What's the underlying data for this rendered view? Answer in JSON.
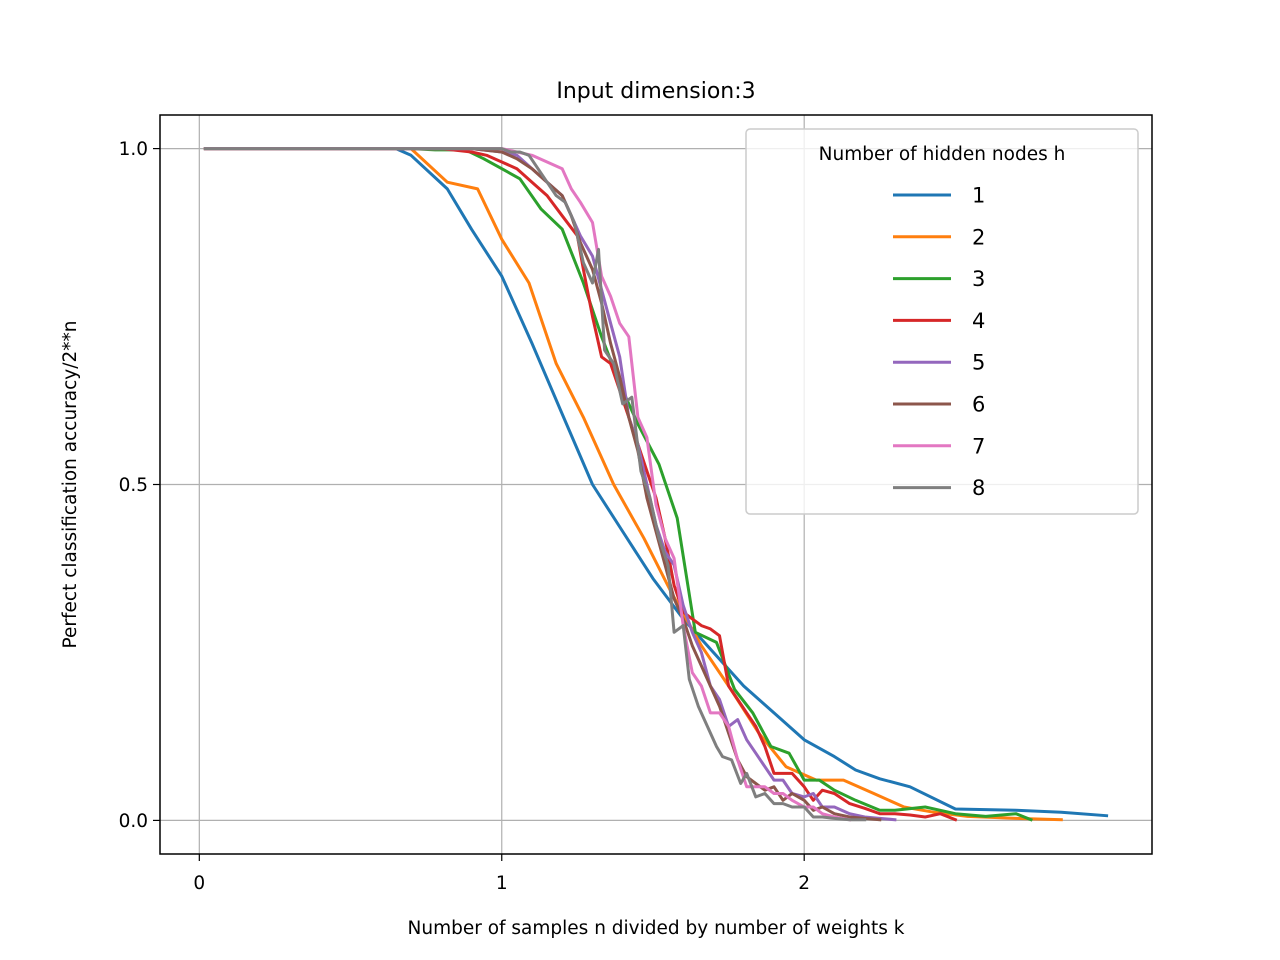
{
  "chart_data": {
    "type": "line",
    "title": "Input dimension:3",
    "xlabel": "Number of samples n divided by number of weights k",
    "ylabel": "Perfect classification accuracy/2**n",
    "xlim": [
      -0.13,
      3.15
    ],
    "ylim": [
      -0.05,
      1.05
    ],
    "xticks": [
      0,
      1,
      2
    ],
    "xtick_labels": [
      "0",
      "1",
      "2"
    ],
    "yticks": [
      0.0,
      0.5,
      1.0
    ],
    "ytick_labels": [
      "0.0",
      "0.5",
      "1.0"
    ],
    "grid": true,
    "legend": {
      "title": "Number of hidden nodes h",
      "placement": "upper right"
    },
    "series": [
      {
        "name": "1",
        "color": "#1f77b4",
        "x": [
          0.02,
          0.55,
          0.65,
          0.7,
          0.82,
          0.9,
          1.0,
          1.1,
          1.2,
          1.3,
          1.4,
          1.5,
          1.6,
          1.7,
          1.8,
          1.9,
          2.0,
          2.1,
          2.17,
          2.25,
          2.35,
          2.5,
          2.7,
          2.85,
          3.0
        ],
        "y": [
          1.0,
          1.0,
          1.0,
          0.99,
          0.94,
          0.88,
          0.81,
          0.71,
          0.605,
          0.5,
          0.43,
          0.36,
          0.3,
          0.25,
          0.2,
          0.16,
          0.12,
          0.095,
          0.075,
          0.062,
          0.05,
          0.017,
          0.015,
          0.012,
          0.007
        ]
      },
      {
        "name": "2",
        "color": "#ff7f0e",
        "x": [
          0.02,
          0.7,
          0.82,
          0.92,
          1.0,
          1.09,
          1.18,
          1.27,
          1.37,
          1.47,
          1.56,
          1.66,
          1.75,
          1.85,
          1.94,
          2.04,
          2.13,
          2.23,
          2.33,
          2.43,
          2.54,
          2.7,
          2.85
        ],
        "y": [
          1.0,
          1.0,
          0.95,
          0.94,
          0.865,
          0.8,
          0.68,
          0.6,
          0.5,
          0.42,
          0.34,
          0.26,
          0.2,
          0.13,
          0.08,
          0.06,
          0.06,
          0.04,
          0.02,
          0.012,
          0.006,
          0.003,
          0.001
        ]
      },
      {
        "name": "3",
        "color": "#2ca02c",
        "x": [
          0.02,
          0.7,
          0.78,
          0.88,
          0.94,
          1.0,
          1.06,
          1.13,
          1.2,
          1.27,
          1.33,
          1.39,
          1.45,
          1.52,
          1.58,
          1.64,
          1.71,
          1.77,
          1.83,
          1.89,
          1.95,
          2.0,
          2.05,
          2.1,
          2.17,
          2.25,
          2.3,
          2.4,
          2.5,
          2.6,
          2.7,
          2.75
        ],
        "y": [
          1.0,
          1.0,
          0.998,
          0.998,
          0.985,
          0.97,
          0.955,
          0.91,
          0.88,
          0.8,
          0.72,
          0.65,
          0.59,
          0.53,
          0.45,
          0.28,
          0.265,
          0.195,
          0.16,
          0.11,
          0.1,
          0.06,
          0.06,
          0.045,
          0.03,
          0.015,
          0.015,
          0.02,
          0.01,
          0.006,
          0.01,
          0.001
        ]
      },
      {
        "name": "4",
        "color": "#d62728",
        "x": [
          0.02,
          0.8,
          0.9,
          0.95,
          1.0,
          1.05,
          1.1,
          1.15,
          1.2,
          1.25,
          1.27,
          1.3,
          1.33,
          1.36,
          1.39,
          1.42,
          1.45,
          1.48,
          1.51,
          1.54,
          1.57,
          1.6,
          1.63,
          1.66,
          1.69,
          1.72,
          1.75,
          1.78,
          1.81,
          1.84,
          1.87,
          1.9,
          1.93,
          1.96,
          2.0,
          2.03,
          2.06,
          2.1,
          2.15,
          2.2,
          2.25,
          2.3,
          2.35,
          2.4,
          2.45,
          2.5
        ],
        "y": [
          1.0,
          1.0,
          0.995,
          0.99,
          0.98,
          0.97,
          0.95,
          0.93,
          0.9,
          0.87,
          0.82,
          0.75,
          0.69,
          0.68,
          0.64,
          0.6,
          0.56,
          0.52,
          0.48,
          0.42,
          0.35,
          0.31,
          0.3,
          0.29,
          0.285,
          0.275,
          0.2,
          0.18,
          0.16,
          0.14,
          0.11,
          0.07,
          0.07,
          0.07,
          0.05,
          0.03,
          0.045,
          0.04,
          0.025,
          0.018,
          0.01,
          0.01,
          0.008,
          0.005,
          0.01,
          0.001
        ]
      },
      {
        "name": "5",
        "color": "#9467bd",
        "x": [
          0.02,
          0.8,
          0.9,
          1.0,
          1.05,
          1.1,
          1.15,
          1.2,
          1.23,
          1.26,
          1.3,
          1.33,
          1.36,
          1.39,
          1.42,
          1.45,
          1.48,
          1.51,
          1.54,
          1.57,
          1.6,
          1.63,
          1.66,
          1.69,
          1.72,
          1.75,
          1.78,
          1.81,
          1.84,
          1.87,
          1.9,
          1.93,
          1.96,
          2.0,
          2.03,
          2.06,
          2.1,
          2.15,
          2.2,
          2.25,
          2.3
        ],
        "y": [
          1.0,
          1.0,
          1.0,
          0.995,
          0.99,
          0.97,
          0.95,
          0.93,
          0.9,
          0.87,
          0.84,
          0.79,
          0.74,
          0.69,
          0.6,
          0.56,
          0.5,
          0.44,
          0.4,
          0.38,
          0.32,
          0.28,
          0.25,
          0.2,
          0.18,
          0.14,
          0.15,
          0.12,
          0.1,
          0.08,
          0.06,
          0.06,
          0.04,
          0.035,
          0.04,
          0.02,
          0.02,
          0.01,
          0.005,
          0.003,
          0.001
        ]
      },
      {
        "name": "6",
        "color": "#8c564b",
        "x": [
          0.02,
          0.8,
          0.9,
          1.0,
          1.05,
          1.1,
          1.15,
          1.2,
          1.23,
          1.26,
          1.3,
          1.33,
          1.36,
          1.39,
          1.42,
          1.45,
          1.48,
          1.51,
          1.54,
          1.57,
          1.6,
          1.63,
          1.66,
          1.69,
          1.72,
          1.75,
          1.78,
          1.81,
          1.84,
          1.87,
          1.9,
          1.93,
          1.96,
          2.0,
          2.03,
          2.06,
          2.1,
          2.15,
          2.2,
          2.25
        ],
        "y": [
          1.0,
          1.0,
          1.0,
          0.995,
          0.985,
          0.97,
          0.95,
          0.93,
          0.9,
          0.86,
          0.82,
          0.77,
          0.71,
          0.66,
          0.6,
          0.55,
          0.48,
          0.43,
          0.38,
          0.33,
          0.3,
          0.26,
          0.23,
          0.2,
          0.17,
          0.13,
          0.09,
          0.065,
          0.055,
          0.045,
          0.05,
          0.03,
          0.04,
          0.03,
          0.015,
          0.02,
          0.01,
          0.005,
          0.003,
          0.001
        ]
      },
      {
        "name": "7",
        "color": "#e377c2",
        "x": [
          0.02,
          0.8,
          0.9,
          1.0,
          1.05,
          1.1,
          1.15,
          1.2,
          1.23,
          1.26,
          1.3,
          1.33,
          1.36,
          1.39,
          1.42,
          1.45,
          1.48,
          1.51,
          1.54,
          1.57,
          1.6,
          1.63,
          1.66,
          1.69,
          1.72,
          1.75,
          1.78,
          1.81,
          1.84,
          1.87,
          1.9,
          1.93,
          1.96,
          2.0,
          2.03,
          2.06,
          2.1,
          2.15
        ],
        "y": [
          1.0,
          1.0,
          1.0,
          1.0,
          0.995,
          0.99,
          0.98,
          0.97,
          0.94,
          0.92,
          0.89,
          0.81,
          0.78,
          0.74,
          0.72,
          0.6,
          0.57,
          0.47,
          0.42,
          0.39,
          0.29,
          0.22,
          0.2,
          0.16,
          0.16,
          0.14,
          0.09,
          0.05,
          0.05,
          0.05,
          0.04,
          0.04,
          0.03,
          0.02,
          0.02,
          0.01,
          0.005,
          0.001
        ]
      },
      {
        "name": "8",
        "color": "#7f7f7f",
        "x": [
          0.02,
          0.8,
          0.9,
          1.0,
          1.03,
          1.06,
          1.09,
          1.12,
          1.15,
          1.18,
          1.21,
          1.24,
          1.27,
          1.3,
          1.32,
          1.34,
          1.37,
          1.4,
          1.43,
          1.46,
          1.49,
          1.52,
          1.55,
          1.57,
          1.6,
          1.62,
          1.65,
          1.68,
          1.71,
          1.73,
          1.76,
          1.79,
          1.81,
          1.84,
          1.87,
          1.9,
          1.93,
          1.96,
          2.0,
          2.03,
          2.06,
          2.1,
          2.15,
          2.2
        ],
        "y": [
          1.0,
          1.0,
          1.0,
          1.0,
          0.995,
          0.995,
          0.99,
          0.97,
          0.95,
          0.93,
          0.92,
          0.89,
          0.83,
          0.8,
          0.85,
          0.7,
          0.68,
          0.62,
          0.63,
          0.52,
          0.48,
          0.42,
          0.38,
          0.28,
          0.29,
          0.21,
          0.17,
          0.14,
          0.11,
          0.095,
          0.09,
          0.055,
          0.07,
          0.035,
          0.04,
          0.025,
          0.025,
          0.02,
          0.02,
          0.005,
          0.005,
          0.003,
          0.001,
          0.001
        ]
      }
    ]
  }
}
